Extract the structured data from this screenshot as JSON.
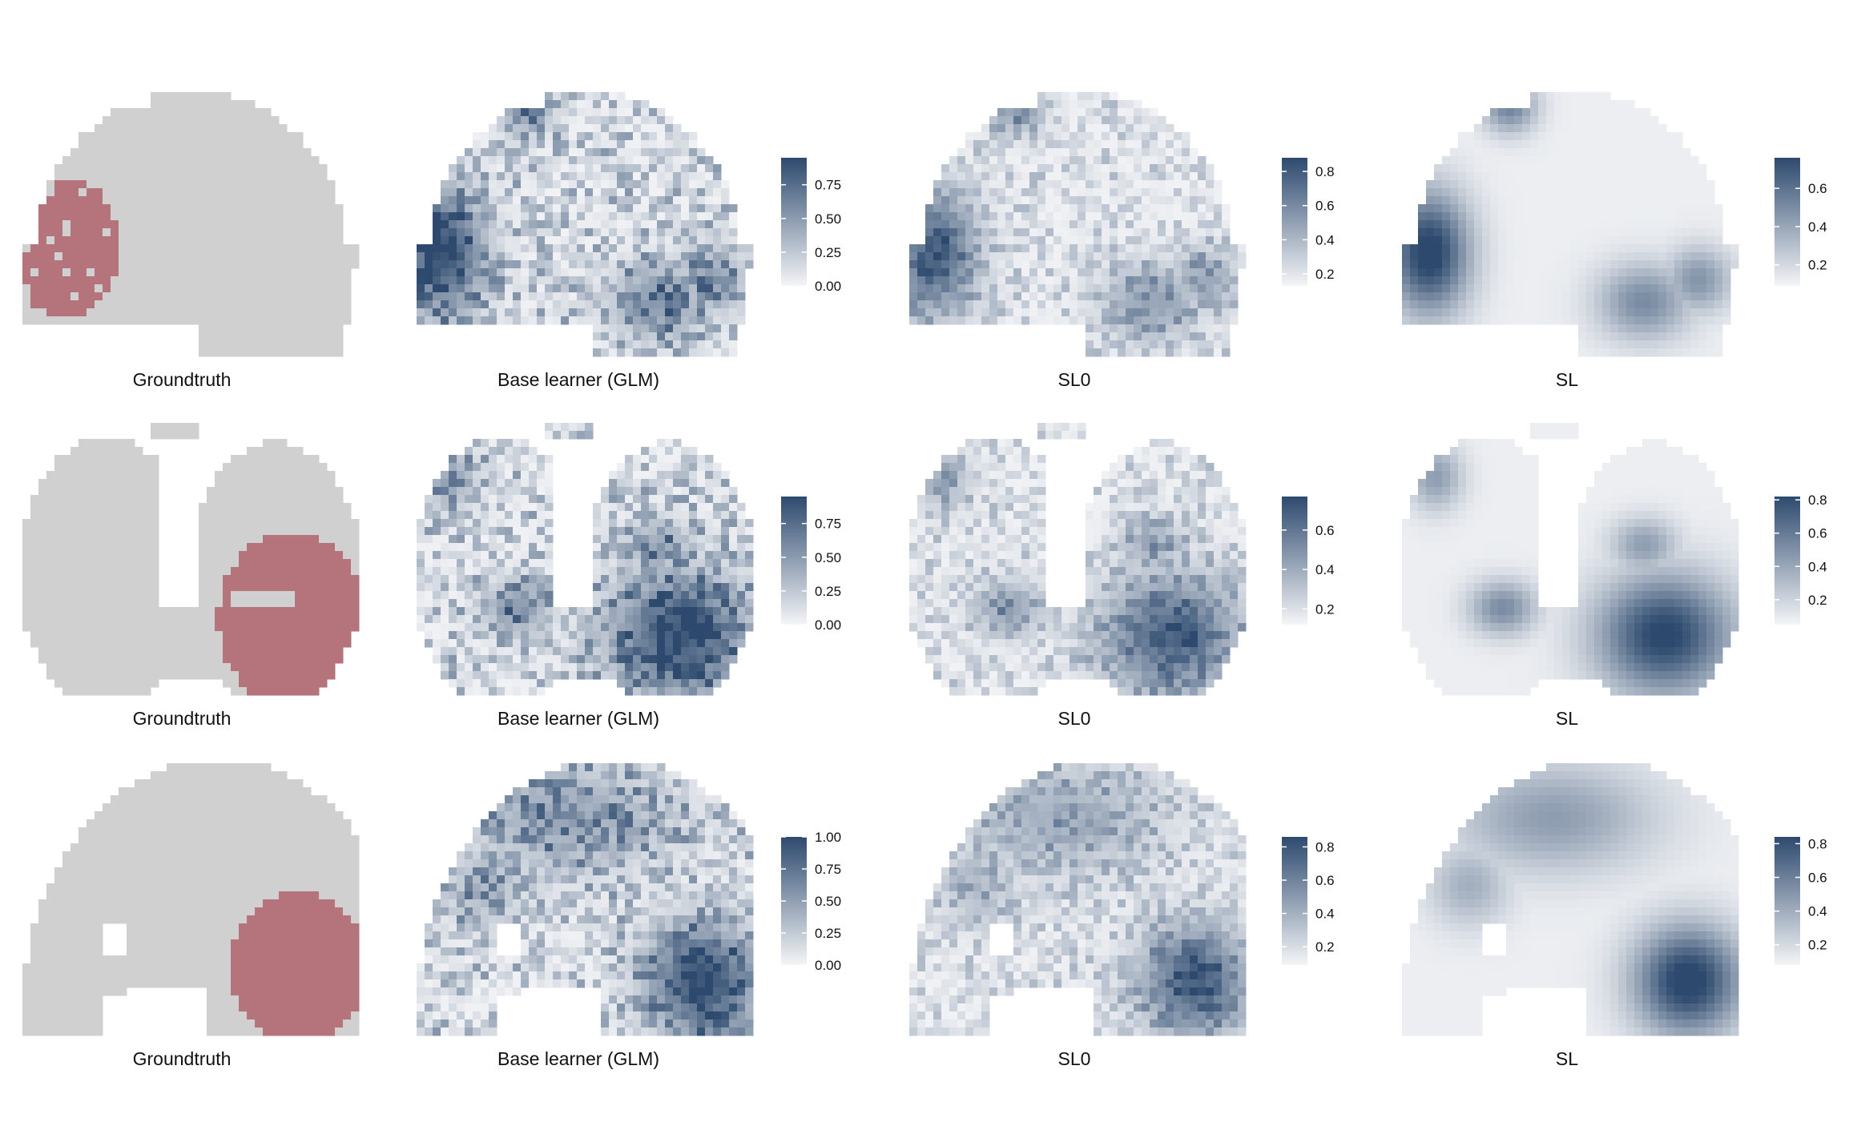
{
  "chart_data": {
    "type": "heatmap",
    "colors": {
      "groundtruth_background": "#d0d0d0",
      "groundtruth_lesion": "#b5737b",
      "scale_low": "#f4f5f7",
      "scale_high": "#2d4a6e"
    },
    "rows": [
      {
        "panels": [
          {
            "title": "Groundtruth",
            "kind": "groundtruth"
          },
          {
            "title": "Base learner (GLM)",
            "kind": "map",
            "colorbar": {
              "range": [
                0,
                0.95
              ],
              "ticks": [
                {
                  "value": 0.75,
                  "label": "0.75"
                },
                {
                  "value": 0.5,
                  "label": "0.50"
                },
                {
                  "value": 0.25,
                  "label": "0.25"
                },
                {
                  "value": 0,
                  "label": "0.00"
                }
              ]
            }
          },
          {
            "title": "SL0",
            "kind": "map",
            "colorbar": {
              "range": [
                0.13,
                0.88
              ],
              "ticks": [
                {
                  "value": 0.8,
                  "label": "0.8"
                },
                {
                  "value": 0.6,
                  "label": "0.6"
                },
                {
                  "value": 0.4,
                  "label": "0.4"
                },
                {
                  "value": 0.2,
                  "label": "0.2"
                }
              ]
            }
          },
          {
            "title": "SL",
            "kind": "map",
            "colorbar": {
              "range": [
                0.09,
                0.76
              ],
              "ticks": [
                {
                  "value": 0.6,
                  "label": "0.6"
                },
                {
                  "value": 0.4,
                  "label": "0.4"
                },
                {
                  "value": 0.2,
                  "label": "0.2"
                }
              ]
            }
          }
        ]
      },
      {
        "panels": [
          {
            "title": "Groundtruth",
            "kind": "groundtruth"
          },
          {
            "title": "Base learner (GLM)",
            "kind": "map",
            "colorbar": {
              "range": [
                0,
                0.95
              ],
              "ticks": [
                {
                  "value": 0.75,
                  "label": "0.75"
                },
                {
                  "value": 0.5,
                  "label": "0.50"
                },
                {
                  "value": 0.25,
                  "label": "0.25"
                },
                {
                  "value": 0,
                  "label": "0.00"
                }
              ]
            }
          },
          {
            "title": "SL0",
            "kind": "map",
            "colorbar": {
              "range": [
                0.12,
                0.77
              ],
              "ticks": [
                {
                  "value": 0.6,
                  "label": "0.6"
                },
                {
                  "value": 0.4,
                  "label": "0.4"
                },
                {
                  "value": 0.2,
                  "label": "0.2"
                }
              ]
            }
          },
          {
            "title": "SL",
            "kind": "map",
            "colorbar": {
              "range": [
                0.05,
                0.82
              ],
              "ticks": [
                {
                  "value": 0.8,
                  "label": "0.8"
                },
                {
                  "value": 0.6,
                  "label": "0.6"
                },
                {
                  "value": 0.4,
                  "label": "0.4"
                },
                {
                  "value": 0.2,
                  "label": "0.2"
                }
              ]
            }
          }
        ]
      },
      {
        "panels": [
          {
            "title": "Groundtruth",
            "kind": "groundtruth"
          },
          {
            "title": "Base learner (GLM)",
            "kind": "map",
            "colorbar": {
              "range": [
                0,
                1.0
              ],
              "ticks": [
                {
                  "value": 1.0,
                  "label": "1.00"
                },
                {
                  "value": 0.75,
                  "label": "0.75"
                },
                {
                  "value": 0.5,
                  "label": "0.50"
                },
                {
                  "value": 0.25,
                  "label": "0.25"
                },
                {
                  "value": 0,
                  "label": "0.00"
                }
              ]
            }
          },
          {
            "title": "SL0",
            "kind": "map",
            "colorbar": {
              "range": [
                0.09,
                0.86
              ],
              "ticks": [
                {
                  "value": 0.8,
                  "label": "0.8"
                },
                {
                  "value": 0.6,
                  "label": "0.6"
                },
                {
                  "value": 0.4,
                  "label": "0.4"
                },
                {
                  "value": 0.2,
                  "label": "0.2"
                }
              ]
            }
          },
          {
            "title": "SL",
            "kind": "map",
            "colorbar": {
              "range": [
                0.08,
                0.84
              ],
              "ticks": [
                {
                  "value": 0.8,
                  "label": "0.8"
                },
                {
                  "value": 0.6,
                  "label": "0.6"
                },
                {
                  "value": 0.4,
                  "label": "0.4"
                },
                {
                  "value": 0.2,
                  "label": "0.2"
                }
              ]
            }
          }
        ]
      }
    ]
  }
}
